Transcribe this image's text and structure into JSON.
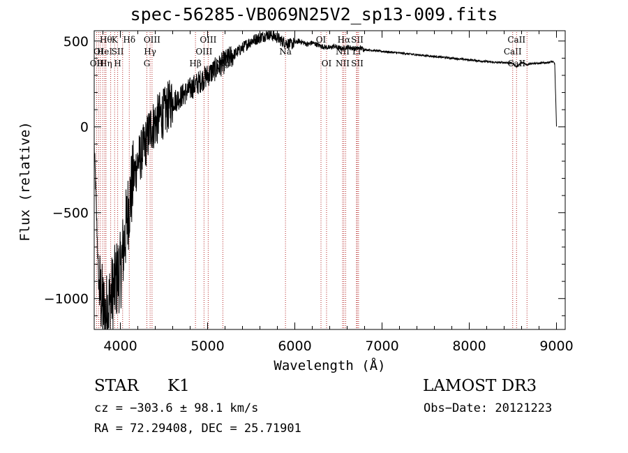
{
  "chart_data": {
    "type": "line",
    "title": "spec-56285-VB069N25V2_sp13-009.fits",
    "xlabel": "Wavelength (Å)",
    "ylabel": "Flux (relative)",
    "xlim": [
      3700,
      9100
    ],
    "ylim": [
      -1180,
      560
    ],
    "x_ticks": [
      4000,
      5000,
      6000,
      7000,
      8000,
      9000
    ],
    "y_ticks": [
      -1000,
      -500,
      0,
      500
    ],
    "grid": false,
    "series": [
      {
        "x": [
          3700,
          3720,
          3750,
          3780,
          3800,
          3830,
          3860,
          3890,
          3920,
          3950,
          3980,
          4000,
          4050,
          4100,
          4150,
          4200,
          4250,
          4300,
          4350,
          4400,
          4450,
          4500,
          4550,
          4600,
          4650,
          4700,
          4750,
          4800,
          4850,
          4900,
          4950,
          5000,
          5050,
          5100,
          5150,
          5200,
          5250,
          5300,
          5350,
          5400,
          5450,
          5500,
          5550,
          5600,
          5650,
          5700,
          5750,
          5800,
          5850,
          5900,
          5950,
          6000,
          6050,
          6100,
          6150,
          6200,
          6250,
          6300,
          6350,
          6400,
          6450,
          6500,
          6550,
          6600,
          6650,
          6700,
          6750,
          6800,
          6900,
          7000,
          7100,
          7200,
          7300,
          7400,
          7500,
          7600,
          7700,
          7800,
          7900,
          8000,
          8100,
          8200,
          8300,
          8400,
          8500,
          8540,
          8600,
          8662,
          8700,
          8800,
          8900,
          8950,
          8980,
          9000
        ],
        "y": [
          -100,
          -400,
          -900,
          -1000,
          -1050,
          -1100,
          -1050,
          -1000,
          -950,
          -900,
          -850,
          -850,
          -650,
          -450,
          -300,
          -200,
          -150,
          -80,
          0,
          20,
          60,
          80,
          120,
          150,
          160,
          180,
          200,
          220,
          240,
          260,
          280,
          300,
          320,
          340,
          360,
          380,
          400,
          420,
          440,
          460,
          480,
          500,
          510,
          520,
          530,
          540,
          530,
          520,
          500,
          490,
          480,
          490,
          500,
          490,
          480,
          490,
          480,
          470,
          465,
          460,
          470,
          460,
          455,
          465,
          460,
          455,
          460,
          450,
          445,
          440,
          435,
          430,
          425,
          420,
          415,
          410,
          405,
          400,
          395,
          390,
          385,
          380,
          375,
          375,
          370,
          350,
          375,
          360,
          370,
          370,
          375,
          380,
          370,
          0
        ]
      }
    ],
    "lines": [
      {
        "wl": 3727,
        "top": "",
        "mid": "",
        "bot": "OII"
      },
      {
        "wl": 3750,
        "top": "",
        "mid": "OI",
        "bot": ""
      },
      {
        "wl": 3771,
        "top": "",
        "mid": "",
        "bot": "H"
      },
      {
        "wl": 3798,
        "top": "",
        "mid": "",
        "bot": ""
      },
      {
        "wl": 3820,
        "top": "",
        "mid": "HeI",
        "bot": ""
      },
      {
        "wl": 3835,
        "top": "Hθ",
        "mid": "",
        "bot": "Hη"
      },
      {
        "wl": 3889,
        "top": "",
        "mid": "",
        "bot": ""
      },
      {
        "wl": 3934,
        "top": "K",
        "mid": "",
        "bot": ""
      },
      {
        "wl": 3969,
        "top": "",
        "mid": "SII",
        "bot": "H"
      },
      {
        "wl": 4026,
        "top": "",
        "mid": "",
        "bot": ""
      },
      {
        "wl": 4102,
        "top": "Hδ",
        "mid": "",
        "bot": ""
      },
      {
        "wl": 4304,
        "top": "",
        "mid": "",
        "bot": "G"
      },
      {
        "wl": 4341,
        "top": "",
        "mid": "Hγ",
        "bot": ""
      },
      {
        "wl": 4363,
        "top": "OIII",
        "mid": "",
        "bot": ""
      },
      {
        "wl": 4861,
        "top": "",
        "mid": "",
        "bot": "Hβ"
      },
      {
        "wl": 4959,
        "top": "",
        "mid": "OIII",
        "bot": ""
      },
      {
        "wl": 5007,
        "top": "OIII",
        "mid": "",
        "bot": ""
      },
      {
        "wl": 5175,
        "top": "",
        "mid": "",
        "bot": "Mg"
      },
      {
        "wl": 5893,
        "top": "",
        "mid": "Na",
        "bot": ""
      },
      {
        "wl": 6300,
        "top": "OI",
        "mid": "",
        "bot": ""
      },
      {
        "wl": 6364,
        "top": "",
        "mid": "",
        "bot": "OI"
      },
      {
        "wl": 6548,
        "top": "",
        "mid": "NII",
        "bot": "NII"
      },
      {
        "wl": 6563,
        "top": "Hα",
        "mid": "",
        "bot": ""
      },
      {
        "wl": 6583,
        "top": "",
        "mid": "",
        "bot": ""
      },
      {
        "wl": 6707,
        "top": "",
        "mid": "Li",
        "bot": ""
      },
      {
        "wl": 6716,
        "top": "SII",
        "mid": "",
        "bot": "SII"
      },
      {
        "wl": 6731,
        "top": "",
        "mid": "",
        "bot": ""
      },
      {
        "wl": 8498,
        "top": "",
        "mid": "CaII",
        "bot": ""
      },
      {
        "wl": 8542,
        "top": "CaII",
        "mid": "",
        "bot": "CaII"
      },
      {
        "wl": 8662,
        "top": "",
        "mid": "",
        "bot": ""
      }
    ]
  },
  "info": {
    "class_label": "STAR",
    "subclass": "K1",
    "survey": "LAMOST DR3",
    "cz": "cz = −303.6 ± 98.1 km/s",
    "obs_date": "Obs−Date: 20121223",
    "coords": "RA =  72.29408, DEC =  25.71901"
  }
}
